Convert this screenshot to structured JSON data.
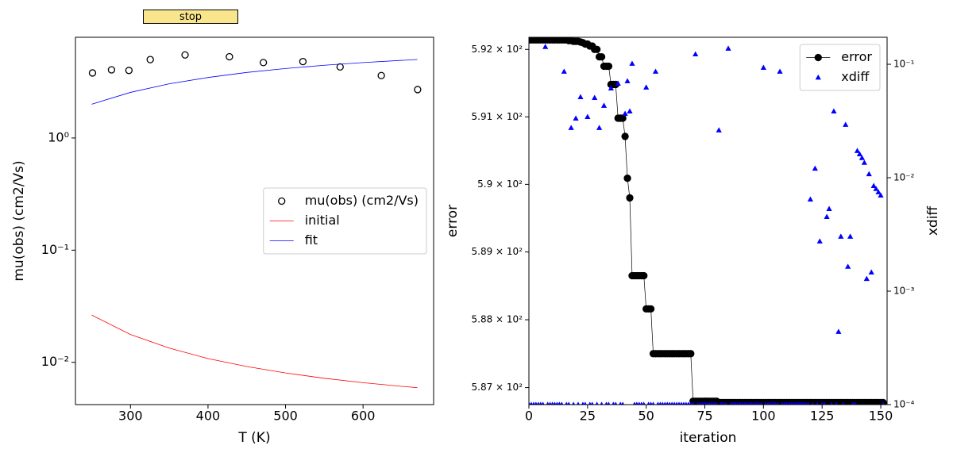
{
  "button": {
    "label": "stop"
  },
  "chart_data": [
    {
      "type": "line",
      "xlabel": "T (K)",
      "ylabel": "mu(obs) (cm2/Vs)",
      "xlim": [
        229,
        691
      ],
      "ylim": [
        0.0042,
        7.9
      ],
      "ylog": true,
      "xticks": [
        300,
        400,
        500,
        600
      ],
      "yticks": [
        {
          "value": 0.01,
          "label": "10⁻²"
        },
        {
          "value": 0.1,
          "label": "10⁻¹"
        },
        {
          "value": 1,
          "label": "10⁰"
        }
      ],
      "legend": "center right",
      "series": [
        {
          "name": "mu(obs) (cm2/Vs)",
          "color": "black",
          "marker": "o",
          "filled": false,
          "linestyle": "none",
          "x": [
            251,
            275.5,
            298,
            325.5,
            370.4,
            427.6,
            471.4,
            522.4,
            570.4,
            623.5,
            670.4
          ],
          "values": [
            3.8,
            4.05,
            4.0,
            5.0,
            5.5,
            5.3,
            4.7,
            4.8,
            4.3,
            3.6,
            2.7
          ]
        },
        {
          "name": "initial",
          "color": "red",
          "marker": null,
          "linestyle": "-",
          "x": [
            250,
            300,
            350,
            400,
            450,
            500,
            550,
            600,
            650,
            670
          ],
          "values": [
            0.0264,
            0.0177,
            0.0134,
            0.0108,
            0.00918,
            0.00804,
            0.00721,
            0.00659,
            0.00611,
            0.00594
          ]
        },
        {
          "name": "fit",
          "color": "blue",
          "marker": null,
          "linestyle": "-",
          "x": [
            250,
            300,
            350,
            400,
            450,
            500,
            550,
            600,
            650,
            670
          ],
          "values": [
            2.0,
            2.55,
            3.04,
            3.46,
            3.84,
            4.16,
            4.45,
            4.7,
            4.92,
            5.01
          ]
        }
      ]
    },
    {
      "type": "line",
      "xlabel": "iteration",
      "ylabel": "error",
      "y2label": "xdiff",
      "xlim": [
        0,
        152.7
      ],
      "ylim": [
        586.75,
        592.18
      ],
      "ylog": true,
      "y2lim": [
        0.0001,
        0.173
      ],
      "y2log": true,
      "xticks": [
        0,
        25,
        50,
        75,
        100,
        125,
        150
      ],
      "yticks": [
        {
          "value": 587,
          "label": "5.87 × 10²"
        },
        {
          "value": 588,
          "label": "5.88 × 10²"
        },
        {
          "value": 589,
          "label": "5.89 × 10²"
        },
        {
          "value": 590,
          "label": "5.9 × 10²"
        },
        {
          "value": 591,
          "label": "5.91 × 10²"
        },
        {
          "value": 592,
          "label": "5.92 × 10²"
        }
      ],
      "y2ticks": [
        {
          "value": 0.0001,
          "label": "10⁻⁴"
        },
        {
          "value": 0.001,
          "label": "10⁻³"
        },
        {
          "value": 0.01,
          "label": "10⁻²"
        },
        {
          "value": 0.1,
          "label": "10⁻¹"
        }
      ],
      "legend": "upper right",
      "x": [
        0,
        1,
        2,
        3,
        4,
        5,
        6,
        7,
        8,
        9,
        10,
        11,
        12,
        13,
        14,
        15,
        16,
        17,
        18,
        19,
        20,
        21,
        22,
        23,
        24,
        25,
        26,
        27,
        28,
        29,
        30,
        31,
        32,
        33,
        34,
        35,
        36,
        37,
        38,
        39,
        40,
        41,
        42,
        43,
        44,
        45,
        46,
        47,
        48,
        49,
        50,
        51,
        52,
        53,
        54,
        55,
        56,
        57,
        58,
        59,
        60,
        61,
        62,
        63,
        64,
        65,
        66,
        67,
        68,
        69,
        70,
        71,
        72,
        73,
        74,
        75,
        76,
        77,
        78,
        79,
        80,
        81,
        82,
        83,
        84,
        85,
        86,
        87,
        88,
        89,
        90,
        91,
        92,
        93,
        94,
        95,
        96,
        97,
        98,
        99,
        100,
        101,
        102,
        103,
        104,
        105,
        106,
        107,
        108,
        109,
        110,
        111,
        112,
        113,
        114,
        115,
        116,
        117,
        118,
        119,
        120,
        121,
        122,
        123,
        124,
        125,
        126,
        127,
        128,
        129,
        130,
        131,
        132,
        133,
        134,
        135,
        136,
        137,
        138,
        139,
        140,
        141,
        142,
        143,
        144,
        145,
        146,
        147,
        148,
        149,
        150,
        151
      ],
      "series": [
        {
          "name": "error",
          "color": "black",
          "marker": "o",
          "filled": true,
          "linestyle": "-",
          "values": [
            592.14,
            592.14,
            592.14,
            592.14,
            592.14,
            592.14,
            592.14,
            592.14,
            592.14,
            592.14,
            592.14,
            592.14,
            592.14,
            592.14,
            592.14,
            592.14,
            592.14,
            592.13,
            592.13,
            592.12,
            592.12,
            592.12,
            592.11,
            592.1,
            592.08,
            592.08,
            592.05,
            592.05,
            592.0,
            592.0,
            591.89,
            591.89,
            591.75,
            591.75,
            591.75,
            591.48,
            591.48,
            591.48,
            590.98,
            590.98,
            590.98,
            590.71,
            590.09,
            589.8,
            588.65,
            588.65,
            588.65,
            588.65,
            588.65,
            588.65,
            588.16,
            588.16,
            588.16,
            587.5,
            587.5,
            587.5,
            587.5,
            587.5,
            587.5,
            587.5,
            587.5,
            587.5,
            587.5,
            587.5,
            587.5,
            587.5,
            587.5,
            587.5,
            587.5,
            587.5,
            586.8,
            586.8,
            586.8,
            586.8,
            586.8,
            586.8,
            586.8,
            586.8,
            586.8,
            586.8,
            586.8,
            586.78,
            586.78,
            586.78,
            586.78,
            586.78,
            586.78,
            586.78,
            586.78,
            586.78,
            586.78,
            586.78,
            586.78,
            586.78,
            586.78,
            586.78,
            586.78,
            586.78,
            586.78,
            586.78,
            586.78,
            586.78,
            586.78,
            586.78,
            586.78,
            586.78,
            586.78,
            586.78,
            586.78,
            586.78,
            586.78,
            586.78,
            586.78,
            586.78,
            586.78,
            586.78,
            586.78,
            586.78,
            586.78,
            586.78,
            586.78,
            586.78,
            586.78,
            586.78,
            586.78,
            586.78,
            586.78,
            586.78,
            586.78,
            586.78,
            586.78,
            586.78,
            586.78,
            586.78,
            586.78,
            586.78,
            586.78,
            586.78,
            586.78,
            586.78,
            586.78,
            586.78,
            586.78,
            586.78,
            586.78,
            586.78,
            586.78,
            586.78,
            586.78,
            586.78,
            586.78,
            586.78
          ]
        },
        {
          "name": "xdiff",
          "color": "blue",
          "marker": "^",
          "filled": true,
          "linestyle": "none",
          "axis": "y2",
          "values": [
            0.0001,
            0.0001,
            0.0001,
            0.0001,
            0.0001,
            0.0001,
            0.0001,
            0.143,
            0.0001,
            0.0001,
            0.0001,
            0.0001,
            0.0001,
            0.0001,
            0.0001,
            0.0865,
            0.0001,
            0.0001,
            0.0276,
            0.0001,
            0.0334,
            0.0001,
            0.0516,
            0.0001,
            0.0001,
            0.0345,
            0.0001,
            0.0001,
            0.0508,
            0.0001,
            0.0276,
            0.0001,
            0.0433,
            0.0001,
            0.0001,
            0.0616,
            0.0001,
            0.0001,
            0.0679,
            0.0001,
            0.0001,
            0.0368,
            0.0713,
            0.0386,
            0.1016,
            0.0001,
            0.0001,
            0.0001,
            0.0001,
            0.0001,
            0.0627,
            0.0001,
            0.0001,
            0.0001,
            0.0865,
            0.0001,
            0.0001,
            0.0001,
            0.0001,
            0.0001,
            0.0001,
            0.0001,
            0.0001,
            0.0001,
            0.0001,
            0.0001,
            0.0001,
            0.0001,
            0.0001,
            0.0001,
            0.0001,
            0.123,
            0.0001,
            0.0001,
            0.0001,
            0.0001,
            0.0001,
            0.0001,
            0.0001,
            0.0001,
            0.0001,
            0.0263,
            0.0001,
            0.0001,
            0.0001,
            0.138,
            0.0001,
            0.0001,
            0.0001,
            0.0001,
            0.0001,
            0.0001,
            0.0001,
            0.0001,
            0.0001,
            0.0001,
            0.0001,
            0.0001,
            0.0001,
            0.0001,
            0.0937,
            0.0001,
            0.0001,
            0.0001,
            0.0001,
            0.0001,
            0.0001,
            0.0865,
            0.0001,
            0.0001,
            0.0001,
            0.0001,
            0.0001,
            0.0001,
            0.0001,
            0.0001,
            0.0001,
            0.0001,
            0.0001,
            0.0001,
            0.00647,
            0.0001,
            0.0121,
            0.0001,
            0.00276,
            0.0001,
            0.0001,
            0.00454,
            0.00533,
            0.0001,
            0.0386,
            0.0001,
            0.00044,
            0.00304,
            0.0001,
            0.0294,
            0.00165,
            0.00304,
            0.0001,
            0.0001,
            0.0173,
            0.0162,
            0.015,
            0.0136,
            0.00129,
            0.0108,
            0.00147,
            0.0085,
            0.008,
            0.00748,
            0.00701,
            0.0001
          ]
        }
      ]
    }
  ]
}
